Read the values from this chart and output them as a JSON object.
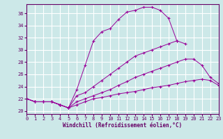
{
  "xlabel": "Windchill (Refroidissement éolien,°C)",
  "background_color": "#cce8e8",
  "grid_color": "#ffffff",
  "line_color": "#990099",
  "xlim": [
    0,
    23
  ],
  "ylim": [
    19.5,
    37.5
  ],
  "yticks": [
    20,
    22,
    24,
    26,
    28,
    30,
    32,
    34,
    36
  ],
  "xticks": [
    0,
    1,
    2,
    3,
    4,
    5,
    6,
    7,
    8,
    9,
    10,
    11,
    12,
    13,
    14,
    15,
    16,
    17,
    18,
    19,
    20,
    21,
    22,
    23
  ],
  "curves": [
    {
      "x": [
        0,
        1,
        2,
        3,
        4,
        5,
        6,
        7,
        8,
        9,
        10,
        11,
        12,
        13,
        14,
        15,
        16,
        17,
        18
      ],
      "y": [
        22,
        21.5,
        21.5,
        21.5,
        21.0,
        20.5,
        23.5,
        27.5,
        31.5,
        33.0,
        33.5,
        35.0,
        36.2,
        36.5,
        37.0,
        37.0,
        36.5,
        35.2,
        31.5
      ]
    },
    {
      "x": [
        0,
        1,
        2,
        3,
        4,
        5,
        6,
        7,
        8,
        9,
        10,
        11,
        12,
        13,
        14,
        15,
        16,
        17,
        18,
        19
      ],
      "y": [
        22,
        21.5,
        21.5,
        21.5,
        21.0,
        20.5,
        22.5,
        23.0,
        24.0,
        25.0,
        26.0,
        27.0,
        28.0,
        29.0,
        29.5,
        30.0,
        30.5,
        31.0,
        31.5,
        31.0
      ]
    },
    {
      "x": [
        0,
        1,
        2,
        3,
        4,
        5,
        6,
        7,
        8,
        9,
        10,
        11,
        12,
        13,
        14,
        15,
        16,
        17,
        18,
        19,
        20,
        21,
        22,
        23
      ],
      "y": [
        22,
        21.5,
        21.5,
        21.5,
        21.0,
        20.5,
        21.5,
        22.0,
        22.5,
        23.0,
        23.5,
        24.2,
        24.8,
        25.5,
        26.0,
        26.5,
        27.0,
        27.5,
        28.0,
        28.5,
        28.5,
        27.5,
        25.5,
        24.5
      ]
    },
    {
      "x": [
        0,
        1,
        2,
        3,
        4,
        5,
        6,
        7,
        8,
        9,
        10,
        11,
        12,
        13,
        14,
        15,
        16,
        17,
        18,
        19,
        20,
        21,
        22,
        23
      ],
      "y": [
        22,
        21.5,
        21.5,
        21.5,
        21.0,
        20.5,
        21.0,
        21.5,
        22.0,
        22.2,
        22.5,
        22.8,
        23.0,
        23.2,
        23.5,
        23.8,
        24.0,
        24.2,
        24.5,
        24.8,
        25.0,
        25.2,
        25.0,
        24.2
      ]
    }
  ]
}
